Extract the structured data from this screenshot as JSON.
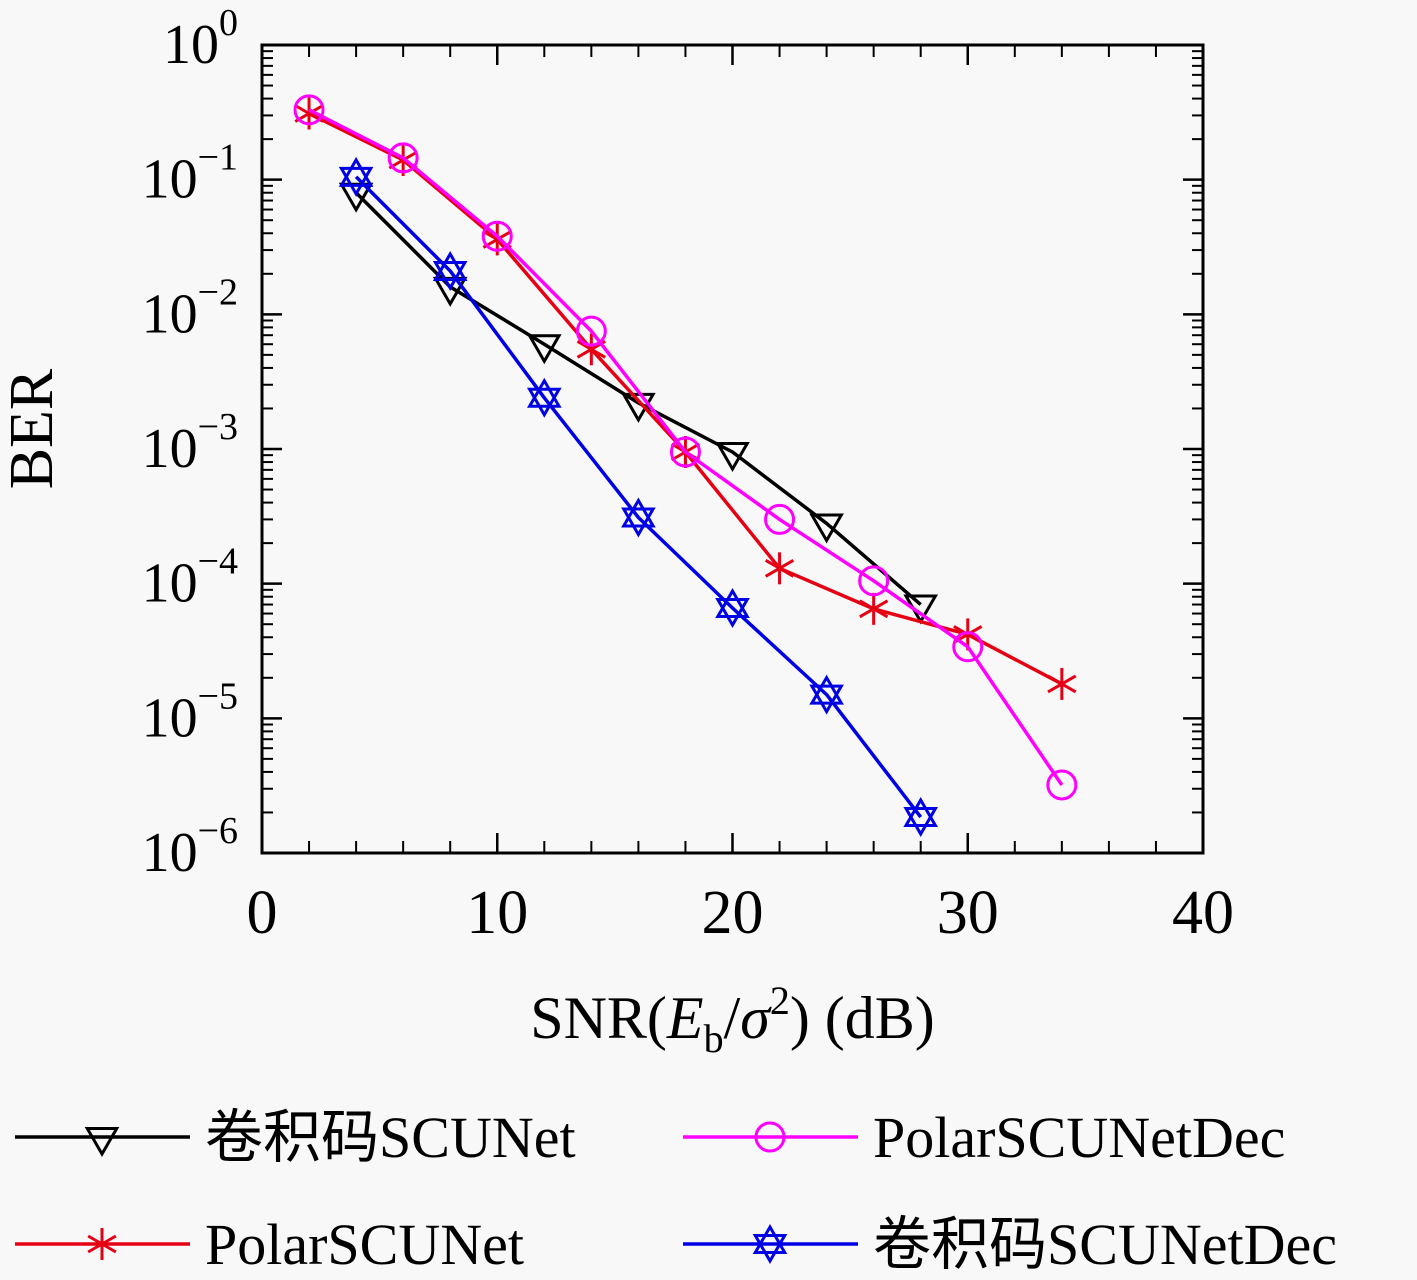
{
  "figure": {
    "background": "#f8f8f8"
  },
  "chart_data": {
    "type": "line",
    "title": "",
    "xlabel": "SNR(Eb/σ2) (dB)",
    "xlabel_parts": [
      {
        "text": "SNR(",
        "style": "normal"
      },
      {
        "text": "E",
        "style": "italic"
      },
      {
        "text": "b",
        "style": "sub"
      },
      {
        "text": "/",
        "style": "normal"
      },
      {
        "text": "σ",
        "style": "italic"
      },
      {
        "text": "2",
        "style": "sup"
      },
      {
        "text": ") (dB)",
        "style": "normal"
      }
    ],
    "ylabel": "BER",
    "xlim": [
      0,
      40
    ],
    "x_ticks": [
      0,
      10,
      20,
      30,
      40
    ],
    "x_minor_step": 2,
    "y_scale": "log",
    "ylim_exp": [
      -6,
      0
    ],
    "y_tick_exponents": [
      0,
      -1,
      -2,
      -3,
      -4,
      -5,
      -6
    ],
    "grid": false,
    "legend_position": "below-two-rows-two-cols",
    "legend_rows": [
      [
        0,
        2
      ],
      [
        1,
        3
      ]
    ],
    "series": [
      {
        "name": "卷积码SCUNet",
        "color": "#000000",
        "marker": "triangle-down",
        "x": [
          4,
          8,
          12,
          16,
          20,
          24,
          28
        ],
        "y": [
          0.08,
          0.016,
          0.006,
          0.0022,
          0.00095,
          0.00028,
          7e-05
        ]
      },
      {
        "name": "PolarSCUNet",
        "color": "#e60014",
        "marker": "asterisk",
        "x": [
          2,
          6,
          10,
          14,
          18,
          22,
          26,
          30,
          34
        ],
        "y": [
          0.31,
          0.14,
          0.036,
          0.0055,
          0.00095,
          0.00013,
          6.5e-05,
          4.2e-05,
          1.8e-05
        ]
      },
      {
        "name": "PolarSCUNetDec",
        "color": "#ff00ff",
        "marker": "circle",
        "x": [
          2,
          6,
          10,
          14,
          18,
          22,
          26,
          30,
          34
        ],
        "y": [
          0.33,
          0.145,
          0.038,
          0.0075,
          0.00095,
          0.0003,
          0.000105,
          3.4e-05,
          3.2e-06
        ]
      },
      {
        "name": "卷积码SCUNetDec",
        "color": "#0000e6",
        "marker": "hexagram",
        "x": [
          4,
          8,
          12,
          16,
          20,
          24,
          28
        ],
        "y": [
          0.105,
          0.021,
          0.0024,
          0.00031,
          6.6e-05,
          1.5e-05,
          1.85e-06
        ]
      }
    ]
  }
}
